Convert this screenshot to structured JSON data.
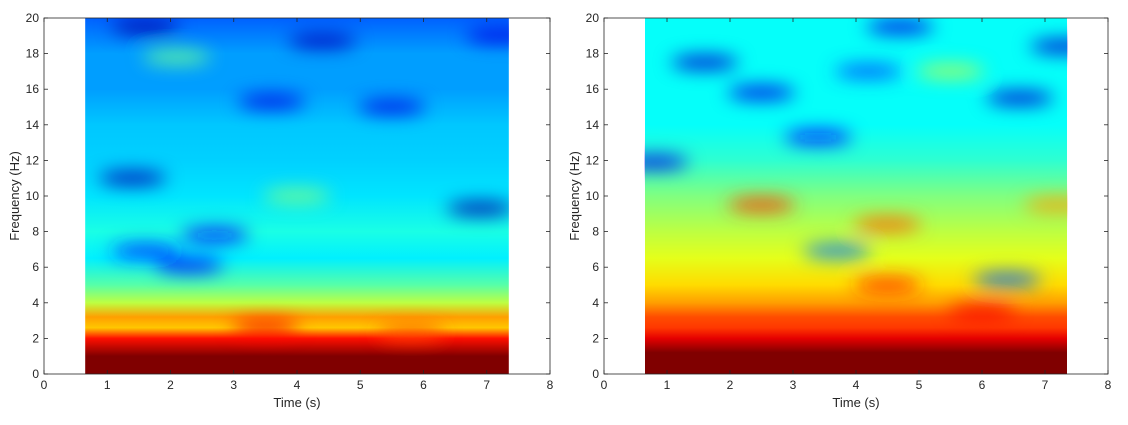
{
  "chart_data": [
    {
      "type": "heatmap",
      "title": "",
      "xlabel": "Time (s)",
      "ylabel": "Frequency (Hz)",
      "xlim": [
        0,
        8
      ],
      "ylim": [
        0,
        20
      ],
      "xticks": [
        "0",
        "1",
        "2",
        "3",
        "4",
        "5",
        "6",
        "7",
        "8"
      ],
      "yticks": [
        "0",
        "2",
        "4",
        "6",
        "8",
        "10",
        "12",
        "14",
        "16",
        "18",
        "20"
      ],
      "data_x_range": [
        0.65,
        7.35
      ],
      "colormap": "jet",
      "grid": false,
      "bands": [
        {
          "f": 0.0,
          "v": 1.0
        },
        {
          "f": 1.0,
          "v": 1.0
        },
        {
          "f": 2.0,
          "v": 0.86
        },
        {
          "f": 2.6,
          "v": 0.68
        },
        {
          "f": 3.2,
          "v": 0.72
        },
        {
          "f": 4.0,
          "v": 0.56
        },
        {
          "f": 5.0,
          "v": 0.46
        },
        {
          "f": 6.5,
          "v": 0.36
        },
        {
          "f": 8.0,
          "v": 0.4
        },
        {
          "f": 10.0,
          "v": 0.35
        },
        {
          "f": 12.0,
          "v": 0.33
        },
        {
          "f": 14.0,
          "v": 0.32
        },
        {
          "f": 16.0,
          "v": 0.28
        },
        {
          "f": 18.0,
          "v": 0.28
        },
        {
          "f": 20.0,
          "v": 0.22
        }
      ],
      "blobs": [
        {
          "t": 1.6,
          "f": 19.5,
          "v": 0.04
        },
        {
          "t": 4.4,
          "f": 18.7,
          "v": 0.06
        },
        {
          "t": 7.2,
          "f": 19.0,
          "v": 0.1
        },
        {
          "t": 1.4,
          "f": 11.0,
          "v": 0.05
        },
        {
          "t": 3.6,
          "f": 15.3,
          "v": 0.1
        },
        {
          "t": 5.5,
          "f": 15.0,
          "v": 0.1
        },
        {
          "t": 6.9,
          "f": 9.3,
          "v": 0.04
        },
        {
          "t": 2.3,
          "f": 6.1,
          "v": 0.12
        },
        {
          "t": 2.7,
          "f": 7.8,
          "v": 0.14
        },
        {
          "t": 1.6,
          "f": 6.9,
          "v": 0.16
        },
        {
          "t": 2.1,
          "f": 17.8,
          "v": 0.48
        },
        {
          "t": 4.0,
          "f": 10.0,
          "v": 0.5
        },
        {
          "t": 3.5,
          "f": 2.6,
          "v": 0.88
        },
        {
          "t": 5.8,
          "f": 2.3,
          "v": 0.8
        }
      ]
    },
    {
      "type": "heatmap",
      "title": "",
      "xlabel": "Time (s)",
      "ylabel": "Frequency (Hz)",
      "xlim": [
        0,
        8
      ],
      "ylim": [
        0,
        20
      ],
      "xticks": [
        "0",
        "1",
        "2",
        "3",
        "4",
        "5",
        "6",
        "7",
        "8"
      ],
      "yticks": [
        "0",
        "2",
        "4",
        "6",
        "8",
        "10",
        "12",
        "14",
        "16",
        "18",
        "20"
      ],
      "data_x_range": [
        0.65,
        7.35
      ],
      "colormap": "jet",
      "grid": false,
      "bands": [
        {
          "f": 0.0,
          "v": 1.0
        },
        {
          "f": 1.2,
          "v": 1.0
        },
        {
          "f": 2.0,
          "v": 0.9
        },
        {
          "f": 2.6,
          "v": 0.82
        },
        {
          "f": 3.2,
          "v": 0.8
        },
        {
          "f": 4.0,
          "v": 0.72
        },
        {
          "f": 5.0,
          "v": 0.66
        },
        {
          "f": 6.5,
          "v": 0.6
        },
        {
          "f": 8.0,
          "v": 0.56
        },
        {
          "f": 10.0,
          "v": 0.5
        },
        {
          "f": 12.0,
          "v": 0.42
        },
        {
          "f": 14.0,
          "v": 0.38
        },
        {
          "f": 16.0,
          "v": 0.38
        },
        {
          "f": 18.0,
          "v": 0.38
        },
        {
          "f": 20.0,
          "v": 0.38
        }
      ],
      "blobs": [
        {
          "t": 1.6,
          "f": 17.5,
          "v": 0.08
        },
        {
          "t": 7.3,
          "f": 18.4,
          "v": 0.08
        },
        {
          "t": 4.7,
          "f": 19.5,
          "v": 0.1
        },
        {
          "t": 2.5,
          "f": 15.8,
          "v": 0.1
        },
        {
          "t": 6.6,
          "f": 15.5,
          "v": 0.08
        },
        {
          "t": 0.8,
          "f": 11.9,
          "v": 0.1
        },
        {
          "t": 3.4,
          "f": 13.3,
          "v": 0.14
        },
        {
          "t": 4.2,
          "f": 17.0,
          "v": 0.2
        },
        {
          "t": 3.7,
          "f": 6.9,
          "v": 0.24
        },
        {
          "t": 6.4,
          "f": 5.3,
          "v": 0.22
        },
        {
          "t": 2.5,
          "f": 9.5,
          "v": 0.82
        },
        {
          "t": 4.5,
          "f": 8.4,
          "v": 0.78
        },
        {
          "t": 4.5,
          "f": 5.0,
          "v": 0.84
        },
        {
          "t": 7.2,
          "f": 9.5,
          "v": 0.72
        },
        {
          "t": 5.5,
          "f": 17.0,
          "v": 0.55
        },
        {
          "t": 6.0,
          "f": 3.5,
          "v": 0.88
        }
      ]
    }
  ]
}
